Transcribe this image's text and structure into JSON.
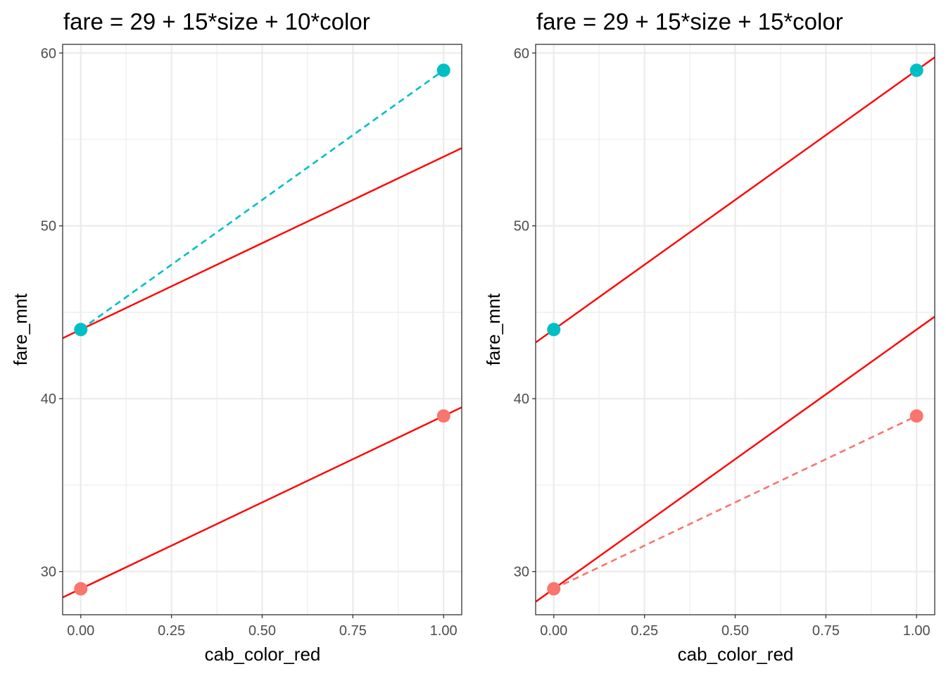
{
  "chart_data": [
    {
      "type": "scatter",
      "title": "fare = 29 + 15*size + 10*color",
      "xlabel": "cab_color_red",
      "ylabel": "fare_mnt",
      "xlim": [
        -0.05,
        1.05
      ],
      "ylim": [
        27.5,
        60.5
      ],
      "x_ticks": [
        "0.00",
        "0.25",
        "0.50",
        "0.75",
        "1.00"
      ],
      "y_ticks": [
        "30",
        "40",
        "50",
        "60"
      ],
      "grid": true,
      "series": [
        {
          "color": "#00BFC4",
          "points": [
            [
              0,
              44
            ],
            [
              1,
              59
            ]
          ],
          "connector": "dashed"
        },
        {
          "color": "#F8766D",
          "points": [
            [
              0,
              29
            ],
            [
              1,
              39
            ]
          ],
          "connector": "none"
        }
      ],
      "fit_lines": [
        {
          "color": "#FF0000",
          "intercept": 44,
          "slope": 10
        },
        {
          "color": "#FF0000",
          "intercept": 29,
          "slope": 10
        }
      ]
    },
    {
      "type": "scatter",
      "title": "fare = 29 + 15*size + 15*color",
      "xlabel": "cab_color_red",
      "ylabel": "fare_mnt",
      "xlim": [
        -0.05,
        1.05
      ],
      "ylim": [
        27.5,
        60.5
      ],
      "x_ticks": [
        "0.00",
        "0.25",
        "0.50",
        "0.75",
        "1.00"
      ],
      "y_ticks": [
        "30",
        "40",
        "50",
        "60"
      ],
      "grid": true,
      "series": [
        {
          "color": "#00BFC4",
          "points": [
            [
              0,
              44
            ],
            [
              1,
              59
            ]
          ],
          "connector": "none"
        },
        {
          "color": "#F8766D",
          "points": [
            [
              0,
              29
            ],
            [
              1,
              39
            ]
          ],
          "connector": "dashed"
        }
      ],
      "fit_lines": [
        {
          "color": "#FF0000",
          "intercept": 44,
          "slope": 15
        },
        {
          "color": "#FF0000",
          "intercept": 29,
          "slope": 15
        }
      ]
    }
  ]
}
